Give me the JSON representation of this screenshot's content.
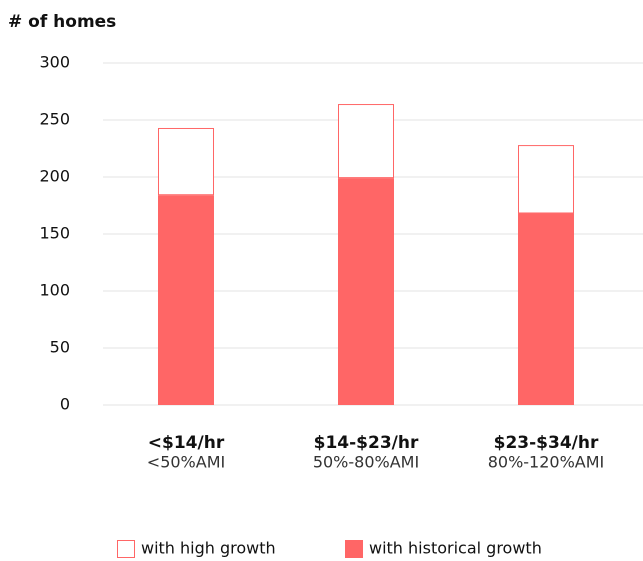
{
  "chart_data": {
    "type": "stacked_bar",
    "title": "# of homes",
    "categories": [
      "<$14/hr",
      "$14-$23/hr",
      "$23-$34/hr"
    ],
    "category_subtitles": [
      "<50%AMI",
      "50%-80%AMI",
      "80%-120%AMI"
    ],
    "series": [
      {
        "name": "with historical growth",
        "color": "#ff6666",
        "fill": "#ff6666",
        "values": [
          184,
          199,
          168
        ]
      },
      {
        "name": "with high growth",
        "color": "#ff6666",
        "fill": "#ffffff",
        "values": [
          59,
          65,
          60
        ]
      }
    ],
    "legend_order": [
      1,
      0
    ],
    "ylim": [
      0,
      300
    ],
    "yticks": [
      0,
      50,
      100,
      150,
      200,
      250,
      300
    ],
    "grid": true
  }
}
